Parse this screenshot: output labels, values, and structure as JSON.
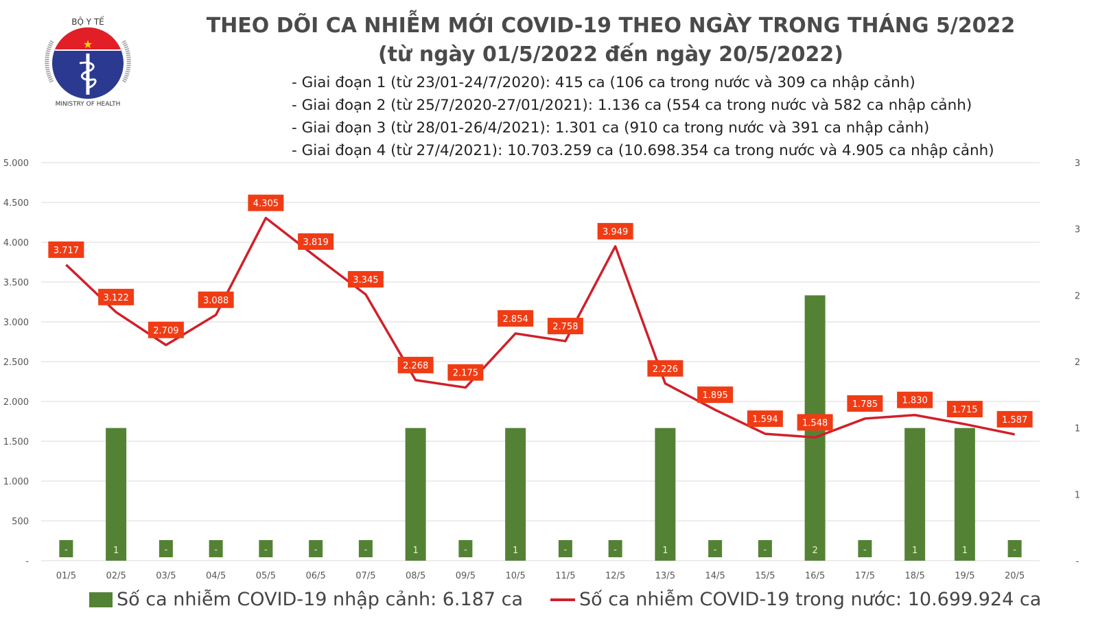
{
  "logo": {
    "top_text": "BỘ Y TẾ",
    "bottom_text": "MINISTRY OF HEALTH"
  },
  "header": {
    "title": "THEO DÕI CA NHIỄM MỚI COVID-19 THEO NGÀY TRONG THÁNG 5/2022",
    "subtitle": "(từ ngày 01/5/2022 đến ngày 20/5/2022)",
    "phases": [
      "- Giai đoạn 1 (từ 23/01-24/7/2020): 415 ca (106 ca trong nước và 309 ca nhập cảnh)",
      "- Giai đoạn 2 (từ 25/7/2020-27/01/2021): 1.136 ca (554 ca trong nước và 582 ca nhập cảnh)",
      "- Giai đoạn 3 (từ 28/01-26/4/2021): 1.301 ca (910 ca trong nước và 391 ca nhập cảnh)",
      "- Giai đoạn 4 (từ 27/4/2021): 10.703.259 ca (10.698.354 ca trong nước và 4.905 ca nhập cảnh)"
    ]
  },
  "chart_data": {
    "type": "bar+line",
    "categories": [
      "01/5",
      "02/5",
      "03/5",
      "04/5",
      "05/5",
      "06/5",
      "07/5",
      "08/5",
      "09/5",
      "10/5",
      "11/5",
      "12/5",
      "13/5",
      "14/5",
      "15/5",
      "16/5",
      "17/5",
      "18/5",
      "19/5",
      "20/5"
    ],
    "series": [
      {
        "name": "Số ca nhiễm COVID-19 nhập cảnh: 6.187 ca",
        "type": "bar",
        "axis": "right",
        "color": "#548235",
        "values": [
          0,
          1,
          0,
          0,
          0,
          0,
          0,
          1,
          0,
          1,
          0,
          0,
          1,
          0,
          0,
          2,
          0,
          1,
          1,
          0
        ],
        "labels": [
          "-",
          "1",
          "-",
          "-",
          "-",
          "-",
          "-",
          "1",
          "-",
          "1",
          "-",
          "-",
          "1",
          "-",
          "-",
          "2",
          "-",
          "1",
          "1",
          "-"
        ]
      },
      {
        "name": "Số ca nhiễm COVID-19 trong nước: 10.699.924 ca",
        "type": "line",
        "axis": "left",
        "color": "#d0202a",
        "label_color": "#f03c14",
        "values": [
          3717,
          3122,
          2709,
          3088,
          4305,
          3819,
          3345,
          2268,
          2175,
          2854,
          2758,
          3949,
          2226,
          1895,
          1594,
          1548,
          1785,
          1830,
          1715,
          1587
        ],
        "labels": [
          "3.717",
          "3.122",
          "2.709",
          "3.088",
          "4.305",
          "3.819",
          "3.345",
          "2.268",
          "2.175",
          "2.854",
          "2.758",
          "3.949",
          "2.226",
          "1.895",
          "1.594",
          "1.548",
          "1.785",
          "1.830",
          "1.715",
          "1.587"
        ]
      }
    ],
    "y_left": {
      "range": [
        0,
        5000
      ],
      "ticks": [
        "-",
        "500",
        "1.000",
        "1.500",
        "2.000",
        "2.500",
        "3.000",
        "3.500",
        "4.000",
        "4.500",
        "5.000"
      ]
    },
    "y_right": {
      "range": [
        0,
        3
      ],
      "ticks": [
        "-",
        "1",
        "1",
        "2",
        "2",
        "3",
        "3"
      ]
    },
    "grid": true,
    "legend": "bottom"
  }
}
